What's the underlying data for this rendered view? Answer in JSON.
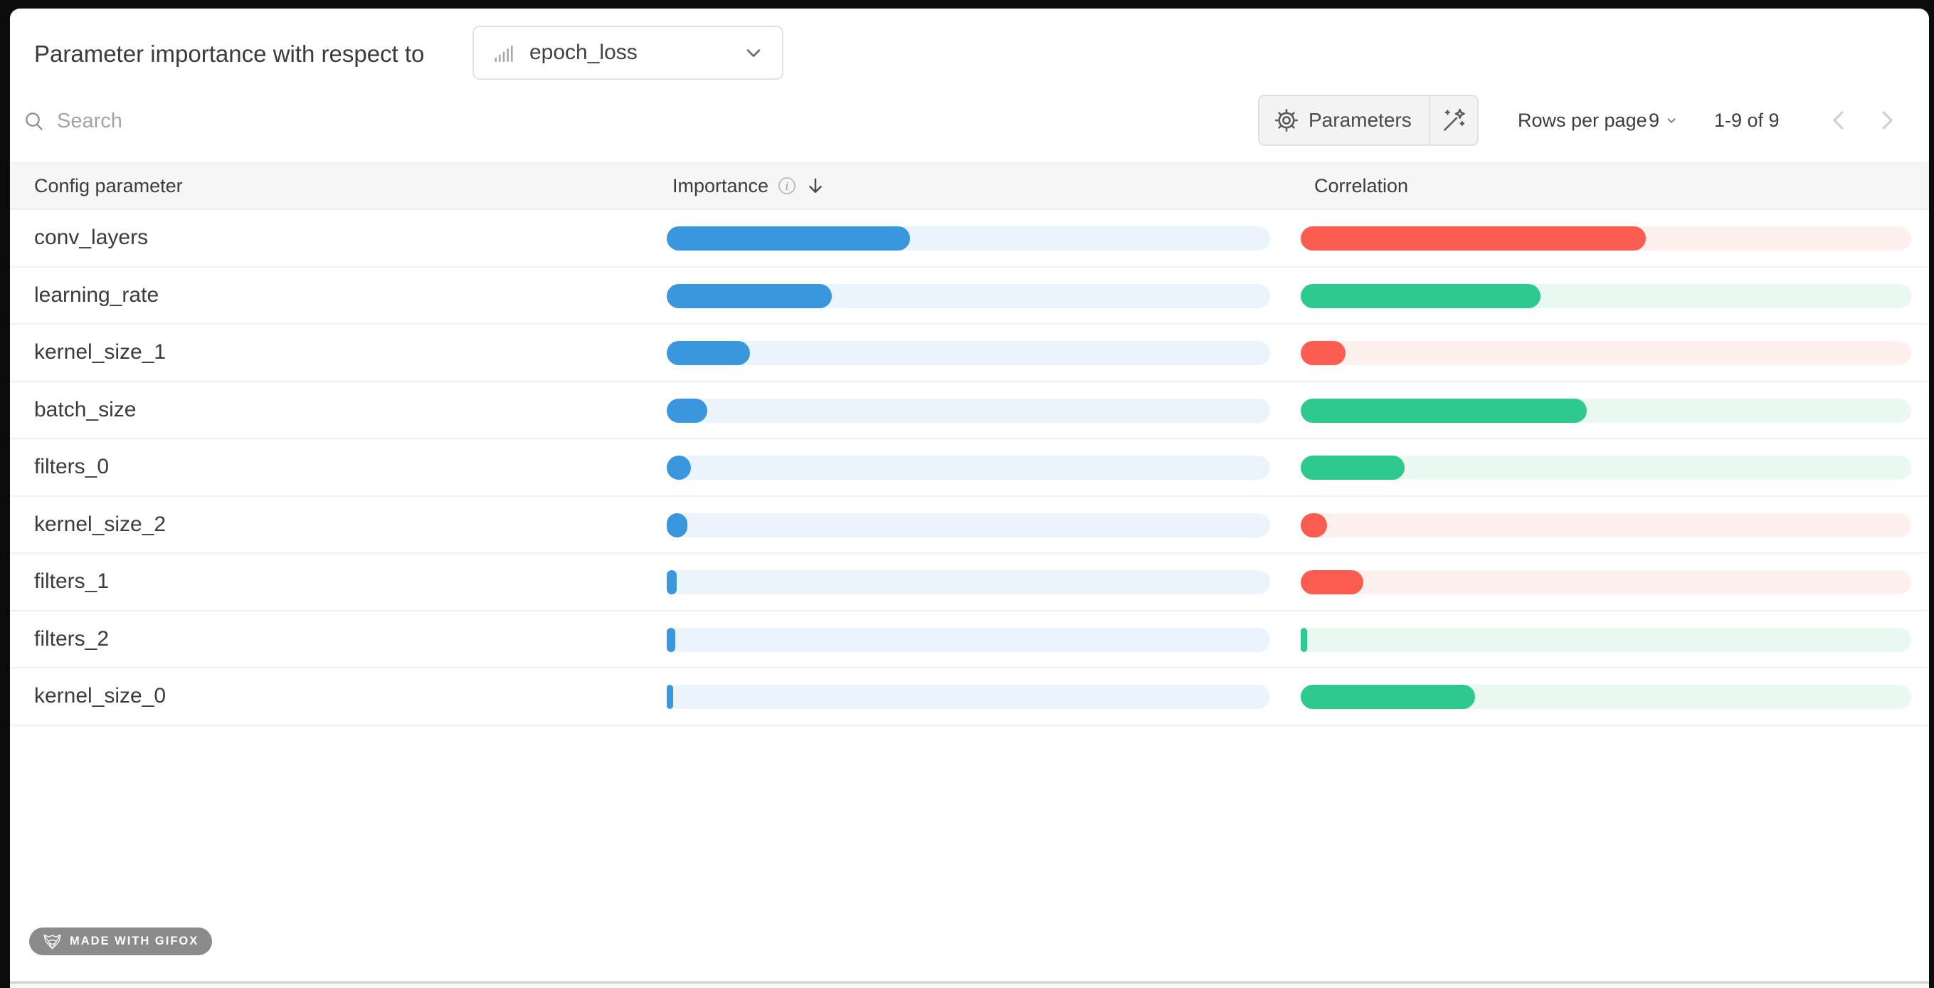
{
  "header": {
    "title": "Parameter importance with respect to",
    "metric": "epoch_loss"
  },
  "toolbar": {
    "search_placeholder": "Search",
    "parameters_label": "Parameters",
    "rows_per_page_label": "Rows per page",
    "rows_per_page_value": "9",
    "page_info": "1-9 of 9"
  },
  "table": {
    "columns": [
      "Config parameter",
      "Importance",
      "Correlation"
    ],
    "rows": [
      {
        "name": "conv_layers",
        "importance": 0.403,
        "correlation": 0.565,
        "correlation_sign": "negative"
      },
      {
        "name": "learning_rate",
        "importance": 0.273,
        "correlation": 0.393,
        "correlation_sign": "positive"
      },
      {
        "name": "kernel_size_1",
        "importance": 0.138,
        "correlation": 0.074,
        "correlation_sign": "negative"
      },
      {
        "name": "batch_size",
        "importance": 0.067,
        "correlation": 0.469,
        "correlation_sign": "positive"
      },
      {
        "name": "filters_0",
        "importance": 0.04,
        "correlation": 0.17,
        "correlation_sign": "positive"
      },
      {
        "name": "kernel_size_2",
        "importance": 0.034,
        "correlation": 0.043,
        "correlation_sign": "negative"
      },
      {
        "name": "filters_1",
        "importance": 0.016,
        "correlation": 0.102,
        "correlation_sign": "negative"
      },
      {
        "name": "filters_2",
        "importance": 0.014,
        "correlation": 0.011,
        "correlation_sign": "positive"
      },
      {
        "name": "kernel_size_0",
        "importance": 0.011,
        "correlation": 0.286,
        "correlation_sign": "positive"
      }
    ]
  },
  "badge": {
    "label": "MADE WITH GIFOX"
  },
  "colors": {
    "importance_fill": "#3a96dd",
    "importance_track": "#ecf4fb",
    "positive_fill": "#2ec98c",
    "positive_track": "#e9f8f1",
    "negative_fill": "#fd5c50",
    "negative_track": "#fdf0ed",
    "header_bg": "#f6f6f6",
    "badge_bg": "#8b8b8b"
  },
  "chart_data": {
    "type": "bar",
    "title": "Parameter importance with respect to epoch_loss",
    "categories": [
      "conv_layers",
      "learning_rate",
      "kernel_size_1",
      "batch_size",
      "filters_0",
      "kernel_size_2",
      "filters_1",
      "filters_2",
      "kernel_size_0"
    ],
    "series": [
      {
        "name": "Importance",
        "values": [
          0.4,
          0.27,
          0.14,
          0.07,
          0.04,
          0.03,
          0.016,
          0.014,
          0.011
        ]
      },
      {
        "name": "Correlation",
        "values": [
          -0.57,
          0.39,
          -0.07,
          0.47,
          0.17,
          -0.04,
          -0.1,
          0.01,
          0.29
        ]
      }
    ],
    "xlabel": "",
    "ylabel": "",
    "xlim": [
      0,
      1
    ],
    "legend": "none",
    "grid": false,
    "note": "horizontal paired bars; correlation red = negative, green = positive"
  }
}
